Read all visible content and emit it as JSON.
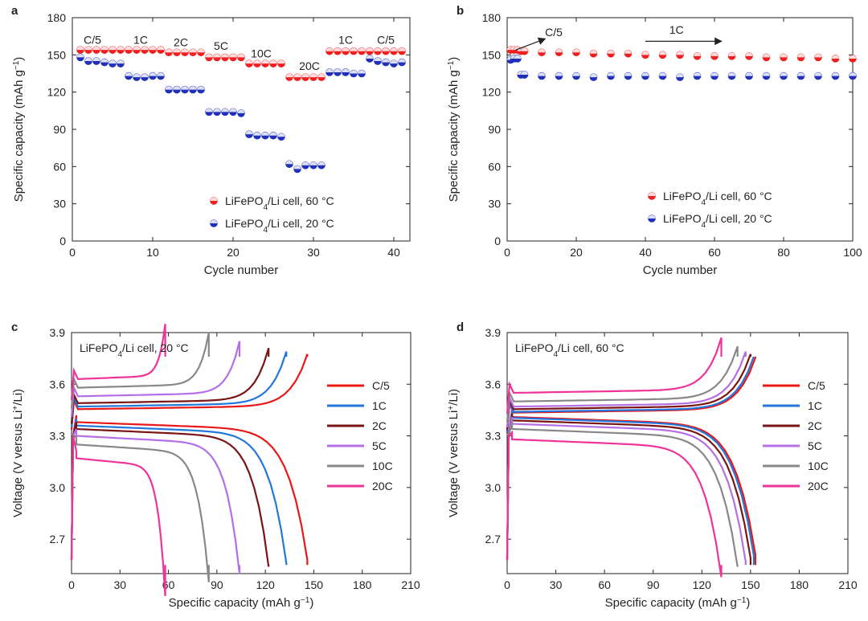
{
  "colors": {
    "red": "#ee2020",
    "red_light": "#f59a9a",
    "blue": "#2030b8",
    "blue_light": "#9aa8e8",
    "c5": "#e81818",
    "1c": "#2277dd",
    "2c": "#7a1414",
    "5c": "#b46ee6",
    "10c": "#888888",
    "20c": "#ee3399"
  },
  "chart_data": [
    {
      "panel_label": "a",
      "type": "scatter",
      "xlabel": "Cycle number",
      "ylabel": "Specific capacity (mAh g",
      "ylabel_sup": "−1",
      "ylabel_end": ")",
      "xlim": [
        0,
        42
      ],
      "ylim": [
        0,
        180
      ],
      "xticks": [
        0,
        10,
        20,
        30,
        40
      ],
      "yticks": [
        0,
        30,
        60,
        90,
        120,
        150,
        180
      ],
      "rate_labels": [
        {
          "text": "C/5",
          "x": 2.5,
          "y": 159
        },
        {
          "text": "1C",
          "x": 8.5,
          "y": 159
        },
        {
          "text": "2C",
          "x": 13.5,
          "y": 157
        },
        {
          "text": "5C",
          "x": 18.5,
          "y": 154
        },
        {
          "text": "10C",
          "x": 23.5,
          "y": 148
        },
        {
          "text": "20C",
          "x": 29.5,
          "y": 138
        },
        {
          "text": "1C",
          "x": 34,
          "y": 159
        },
        {
          "text": "C/5",
          "x": 39,
          "y": 159
        }
      ],
      "series": [
        {
          "name": "LiFePO",
          "sub": "4",
          "suffix": "/Li cell, 60 °C",
          "color_key": "red",
          "x": [
            1,
            2,
            3,
            4,
            5,
            6,
            7,
            8,
            9,
            10,
            11,
            12,
            13,
            14,
            15,
            16,
            17,
            18,
            19,
            20,
            21,
            22,
            23,
            24,
            25,
            26,
            27,
            28,
            29,
            30,
            31,
            32,
            33,
            34,
            35,
            36,
            37,
            38,
            39,
            40,
            41
          ],
          "values": [
            154,
            154,
            154,
            154,
            154,
            154,
            154,
            154,
            154,
            154,
            154,
            152,
            152,
            152,
            152,
            152,
            148,
            148,
            148,
            148,
            148,
            143,
            143,
            143,
            143,
            143,
            132,
            132,
            132,
            132,
            132,
            153,
            153,
            153,
            153,
            153,
            153,
            153,
            153,
            153,
            153
          ]
        },
        {
          "name": "LiFePO",
          "sub": "4",
          "suffix": "/Li cell, 20 °C",
          "color_key": "blue",
          "x": [
            1,
            2,
            3,
            4,
            5,
            6,
            7,
            8,
            9,
            10,
            11,
            12,
            13,
            14,
            15,
            16,
            17,
            18,
            19,
            20,
            21,
            22,
            23,
            24,
            25,
            26,
            27,
            28,
            29,
            30,
            31,
            32,
            33,
            34,
            35,
            36,
            37,
            38,
            39,
            40,
            41
          ],
          "values": [
            148,
            145,
            145,
            144,
            143,
            143,
            133,
            132,
            132,
            133,
            133,
            122,
            122,
            122,
            122,
            122,
            104,
            104,
            104,
            104,
            103,
            86,
            85,
            85,
            85,
            84,
            62,
            58,
            61,
            61,
            61,
            136,
            136,
            136,
            135,
            135,
            147,
            145,
            144,
            143,
            144
          ]
        }
      ]
    },
    {
      "panel_label": "b",
      "type": "scatter",
      "xlabel": "Cycle number",
      "ylabel": "Specific capacity (mAh g",
      "ylabel_sup": "−1",
      "ylabel_end": ")",
      "xlim": [
        0,
        100
      ],
      "ylim": [
        0,
        180
      ],
      "xticks": [
        0,
        20,
        40,
        60,
        80,
        100
      ],
      "yticks": [
        0,
        30,
        60,
        90,
        120,
        150,
        180
      ],
      "rate_labels": [
        {
          "text": "C/5",
          "x": 13.5,
          "y": 165
        },
        {
          "text": "1C",
          "x": 49,
          "y": 167
        }
      ],
      "series": [
        {
          "name": "LiFePO",
          "sub": "4",
          "suffix": "/Li cell, 60 °C",
          "color_key": "red",
          "x": [
            1,
            2,
            3,
            4,
            5,
            10,
            15,
            20,
            25,
            30,
            35,
            40,
            45,
            50,
            55,
            60,
            65,
            70,
            75,
            80,
            85,
            90,
            95,
            100
          ],
          "values": [
            154,
            154,
            154,
            153,
            153,
            152,
            152,
            152,
            151,
            151,
            151,
            150,
            150,
            150,
            149,
            149,
            149,
            149,
            148,
            148,
            148,
            148,
            147,
            147
          ]
        },
        {
          "name": "LiFePO",
          "sub": "4",
          "suffix": "/Li cell, 20 °C",
          "color_key": "blue",
          "x": [
            1,
            2,
            3,
            4,
            5,
            10,
            15,
            20,
            25,
            30,
            35,
            40,
            45,
            50,
            55,
            60,
            65,
            70,
            75,
            80,
            85,
            90,
            95,
            100
          ],
          "values": [
            146,
            147,
            147,
            134,
            134,
            133,
            133,
            133,
            132,
            133,
            133,
            133,
            133,
            132,
            133,
            133,
            133,
            133,
            133,
            133,
            133,
            133,
            133,
            133
          ]
        }
      ]
    },
    {
      "panel_label": "c",
      "type": "line",
      "inset_title": "LiFePO",
      "inset_sub": "4",
      "inset_suffix": "/Li cell, 20 °C",
      "xlabel": "Specific capacity (mAh g",
      "xlabel_sup": "−1",
      "xlabel_end": ")",
      "ylabel": "Voltage (V versus Li",
      "ylabel_sup": "+",
      "ylabel_end": "/Li)",
      "xlim": [
        0,
        210
      ],
      "ylim": [
        2.5,
        3.9
      ],
      "xticks": [
        0,
        30,
        60,
        90,
        120,
        150,
        180,
        210
      ],
      "yticks": [
        2.7,
        3.0,
        3.3,
        3.6,
        3.9
      ],
      "series": [
        {
          "name": "C/5",
          "color_key": "c5",
          "cap": 146,
          "charge_v": 3.455,
          "discharge_v": 3.38
        },
        {
          "name": "1C",
          "color_key": "1c",
          "cap": 133,
          "charge_v": 3.47,
          "discharge_v": 3.36
        },
        {
          "name": "2C",
          "color_key": "2c",
          "cap": 122,
          "charge_v": 3.49,
          "discharge_v": 3.34
        },
        {
          "name": "5C",
          "color_key": "5c",
          "cap": 104,
          "charge_v": 3.53,
          "discharge_v": 3.3
        },
        {
          "name": "10C",
          "color_key": "10c",
          "cap": 85,
          "charge_v": 3.58,
          "discharge_v": 3.25
        },
        {
          "name": "20C",
          "color_key": "20c",
          "cap": 58,
          "charge_v": 3.63,
          "discharge_v": 3.17
        }
      ]
    },
    {
      "panel_label": "d",
      "type": "line",
      "inset_title": "LiFePO",
      "inset_sub": "4",
      "inset_suffix": "/Li cell, 60 °C",
      "xlabel": "Specific capacity (mAh g",
      "xlabel_sup": "−1",
      "xlabel_end": ")",
      "ylabel": "Voltage (V versus Li",
      "ylabel_sup": "+",
      "ylabel_end": "/Li)",
      "xlim": [
        0,
        210
      ],
      "ylim": [
        2.5,
        3.9
      ],
      "xticks": [
        0,
        30,
        60,
        90,
        120,
        150,
        180,
        210
      ],
      "yticks": [
        2.7,
        3.0,
        3.3,
        3.6,
        3.9
      ],
      "series": [
        {
          "name": "C/5",
          "color_key": "c5",
          "cap": 153,
          "charge_v": 3.435,
          "discharge_v": 3.41
        },
        {
          "name": "1C",
          "color_key": "1c",
          "cap": 152,
          "charge_v": 3.44,
          "discharge_v": 3.405
        },
        {
          "name": "2C",
          "color_key": "2c",
          "cap": 150,
          "charge_v": 3.455,
          "discharge_v": 3.39
        },
        {
          "name": "5C",
          "color_key": "5c",
          "cap": 147,
          "charge_v": 3.47,
          "discharge_v": 3.37
        },
        {
          "name": "10C",
          "color_key": "10c",
          "cap": 142,
          "charge_v": 3.5,
          "discharge_v": 3.34
        },
        {
          "name": "20C",
          "color_key": "20c",
          "cap": 132,
          "charge_v": 3.55,
          "discharge_v": 3.28
        }
      ]
    }
  ]
}
